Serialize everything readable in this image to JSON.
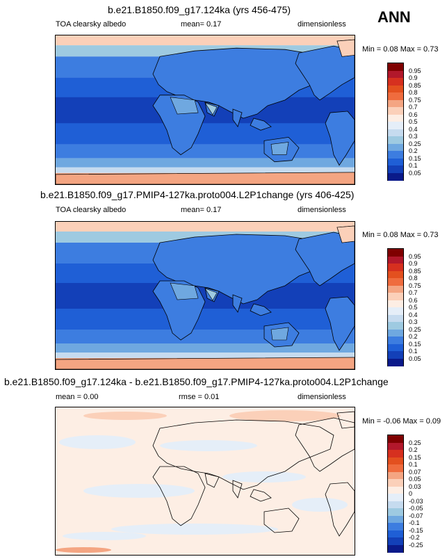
{
  "season": "ANN",
  "panels": [
    {
      "title": "b.e21.B1850.f09_g17.124ka (yrs 456-475)",
      "left_label": "TOA clearsky albedo",
      "center_label": "mean=  0.17",
      "right_label": "dimensionless",
      "minmax": "Min =  0.08 Max =  0.73",
      "colorbar": {
        "labels": [
          "0.95",
          "0.9",
          "0.85",
          "0.8",
          "0.75",
          "0.7",
          "0.6",
          "0.5",
          "0.4",
          "0.3",
          "0.25",
          "0.2",
          "0.15",
          "0.1",
          "0.05"
        ],
        "colors": [
          "#7f0000",
          "#b2182b",
          "#d6301f",
          "#e3501f",
          "#ef6c3e",
          "#f4a582",
          "#fbd0b9",
          "#fdeee4",
          "#e5eef8",
          "#c6dbef",
          "#9ecae1",
          "#6fa8e0",
          "#3d7de0",
          "#1f5fd6",
          "#1340b8",
          "#0a1a8a"
        ]
      },
      "map_type": "absolute"
    },
    {
      "title": "b.e21.B1850.f09_g17.PMIP4-127ka.proto004.L2P1change (yrs 406-425)",
      "left_label": "TOA clearsky albedo",
      "center_label": "mean=  0.17",
      "right_label": "dimensionless",
      "minmax": "Min =  0.08 Max =  0.73",
      "colorbar": {
        "labels": [
          "0.95",
          "0.9",
          "0.85",
          "0.8",
          "0.75",
          "0.7",
          "0.6",
          "0.5",
          "0.4",
          "0.3",
          "0.25",
          "0.2",
          "0.15",
          "0.1",
          "0.05"
        ],
        "colors": [
          "#7f0000",
          "#b2182b",
          "#d6301f",
          "#e3501f",
          "#ef6c3e",
          "#f4a582",
          "#fbd0b9",
          "#fdeee4",
          "#e5eef8",
          "#c6dbef",
          "#9ecae1",
          "#6fa8e0",
          "#3d7de0",
          "#1f5fd6",
          "#1340b8",
          "#0a1a8a"
        ]
      },
      "map_type": "absolute"
    },
    {
      "title": "b.e21.B1850.f09_g17.124ka - b.e21.B1850.f09_g17.PMIP4-127ka.proto004.L2P1change",
      "left_label": "mean =  0.00",
      "center_label": "rmse =  0.01",
      "right_label": "dimensionless",
      "minmax": "Min = -0.06 Max =  0.09",
      "colorbar": {
        "labels": [
          "0.25",
          "0.2",
          "0.15",
          "0.1",
          "0.07",
          "0.05",
          "0.03",
          "0",
          "-0.03",
          "-0.05",
          "-0.07",
          "-0.1",
          "-0.15",
          "-0.2",
          "-0.25"
        ],
        "colors": [
          "#7f0000",
          "#b2182b",
          "#d6301f",
          "#e3501f",
          "#ef6c3e",
          "#f4a582",
          "#fbd0b9",
          "#fdeee4",
          "#e5eef8",
          "#c6dbef",
          "#9ecae1",
          "#6fa8e0",
          "#3d7de0",
          "#1f5fd6",
          "#1340b8",
          "#0a1a8a"
        ]
      },
      "map_type": "difference"
    }
  ]
}
